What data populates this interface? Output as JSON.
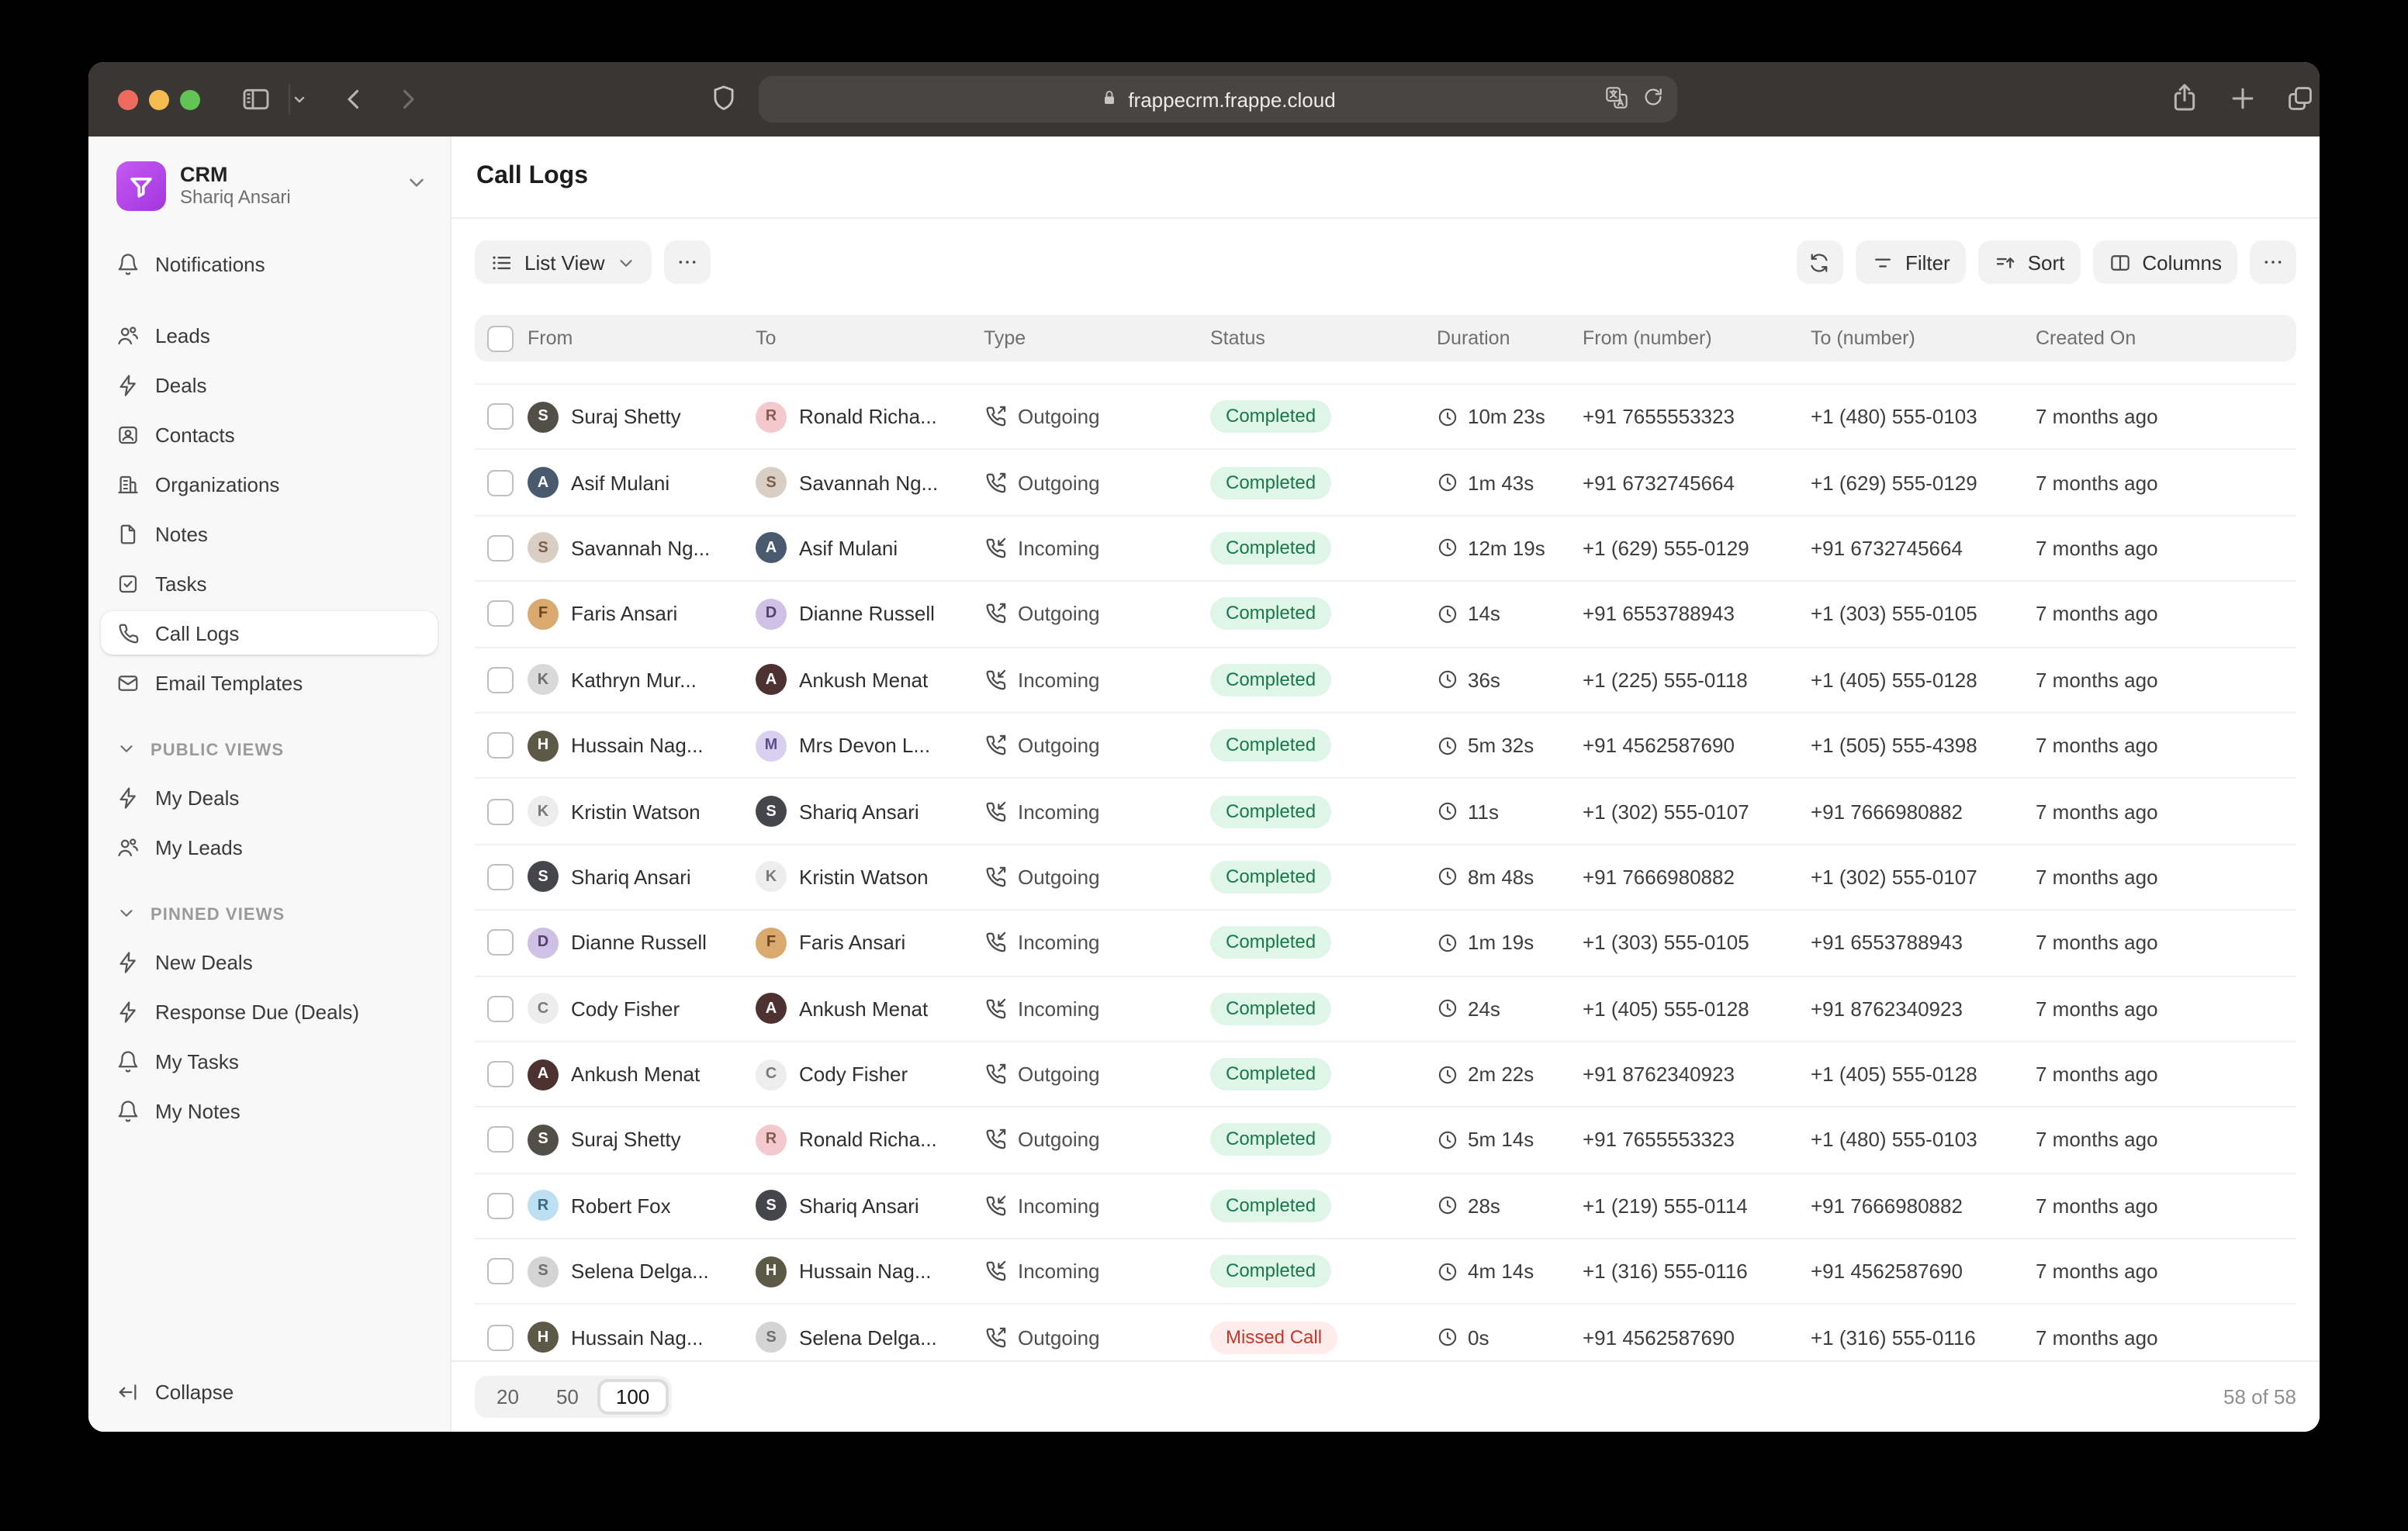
{
  "browser": {
    "url": "frappecrm.frappe.cloud"
  },
  "sidebar": {
    "app_name": "CRM",
    "user_name": "Shariq Ansari",
    "notifications": {
      "label": "Notifications",
      "icon": "bell"
    },
    "items": [
      {
        "label": "Leads",
        "icon": "users",
        "active": false
      },
      {
        "label": "Deals",
        "icon": "zap",
        "active": false
      },
      {
        "label": "Contacts",
        "icon": "contact",
        "active": false
      },
      {
        "label": "Organizations",
        "icon": "building",
        "active": false
      },
      {
        "label": "Notes",
        "icon": "file",
        "active": false
      },
      {
        "label": "Tasks",
        "icon": "tasks",
        "active": false
      },
      {
        "label": "Call Logs",
        "icon": "phone",
        "active": true
      },
      {
        "label": "Email Templates",
        "icon": "mail",
        "active": false
      }
    ],
    "sections": [
      {
        "title": "PUBLIC VIEWS",
        "items": [
          {
            "label": "My Deals",
            "icon": "zap"
          },
          {
            "label": "My Leads",
            "icon": "users"
          }
        ]
      },
      {
        "title": "PINNED VIEWS",
        "items": [
          {
            "label": "New Deals",
            "icon": "zap"
          },
          {
            "label": "Response Due (Deals)",
            "icon": "zap"
          },
          {
            "label": "My Tasks",
            "icon": "bell"
          },
          {
            "label": "My Notes",
            "icon": "bell"
          }
        ]
      }
    ],
    "collapse_label": "Collapse"
  },
  "header": {
    "title": "Call Logs"
  },
  "toolbar": {
    "view_label": "List View",
    "filter_label": "Filter",
    "sort_label": "Sort",
    "columns_label": "Columns"
  },
  "table": {
    "columns": [
      "From",
      "To",
      "Type",
      "Status",
      "Duration",
      "From (number)",
      "To (number)",
      "Created On"
    ],
    "rows": [
      {
        "from": {
          "name": "Suraj Shetty",
          "initial": "S",
          "bg": "#514f47",
          "fg": "#ffffff"
        },
        "to": {
          "name": "Ronald Richa...",
          "initial": "R",
          "bg": "#f3c9ce",
          "fg": "#8a5a55"
        },
        "type": "Outgoing",
        "status": "Completed",
        "duration": "10m 23s",
        "from_number": "+91 7655553323",
        "to_number": "+1 (480) 555-0103",
        "created": "7 months ago"
      },
      {
        "from": {
          "name": "Asif Mulani",
          "initial": "A",
          "bg": "#4a5a6e",
          "fg": "#ffffff"
        },
        "to": {
          "name": "Savannah Ng...",
          "initial": "S",
          "bg": "#d8cec3",
          "fg": "#7a5f4c"
        },
        "type": "Outgoing",
        "status": "Completed",
        "duration": "1m 43s",
        "from_number": "+91 6732745664",
        "to_number": "+1 (629) 555-0129",
        "created": "7 months ago"
      },
      {
        "from": {
          "name": "Savannah Ng...",
          "initial": "S",
          "bg": "#d8cec3",
          "fg": "#7a5f4c"
        },
        "to": {
          "name": "Asif Mulani",
          "initial": "A",
          "bg": "#4a5a6e",
          "fg": "#ffffff"
        },
        "type": "Incoming",
        "status": "Completed",
        "duration": "12m 19s",
        "from_number": "+1 (629) 555-0129",
        "to_number": "+91 6732745664",
        "created": "7 months ago"
      },
      {
        "from": {
          "name": "Faris Ansari",
          "initial": "F",
          "bg": "#d9a96d",
          "fg": "#6b4420"
        },
        "to": {
          "name": "Dianne Russell",
          "initial": "D",
          "bg": "#cfc1e6",
          "fg": "#563f6e"
        },
        "type": "Outgoing",
        "status": "Completed",
        "duration": "14s",
        "from_number": "+91 6553788943",
        "to_number": "+1 (303) 555-0105",
        "created": "7 months ago"
      },
      {
        "from": {
          "name": "Kathryn Mur...",
          "initial": "K",
          "bg": "#d9d9d9",
          "fg": "#6e6e6e"
        },
        "to": {
          "name": "Ankush Menat",
          "initial": "A",
          "bg": "#4e3131",
          "fg": "#ffffff"
        },
        "type": "Incoming",
        "status": "Completed",
        "duration": "36s",
        "from_number": "+1 (225) 555-0118",
        "to_number": "+1 (405) 555-0128",
        "created": "7 months ago"
      },
      {
        "from": {
          "name": "Hussain Nag...",
          "initial": "H",
          "bg": "#5c5946",
          "fg": "#ffffff"
        },
        "to": {
          "name": "Mrs Devon L...",
          "initial": "M",
          "bg": "#d9d0f0",
          "fg": "#5d4f8a"
        },
        "type": "Outgoing",
        "status": "Completed",
        "duration": "5m 32s",
        "from_number": "+91 4562587690",
        "to_number": "+1 (505) 555-4398",
        "created": "7 months ago"
      },
      {
        "from": {
          "name": "Kristin Watson",
          "initial": "K",
          "bg": "#ededed",
          "fg": "#7a7a7a"
        },
        "to": {
          "name": "Shariq Ansari",
          "initial": "S",
          "bg": "#45454c",
          "fg": "#ffffff"
        },
        "type": "Incoming",
        "status": "Completed",
        "duration": "11s",
        "from_number": "+1 (302) 555-0107",
        "to_number": "+91 7666980882",
        "created": "7 months ago"
      },
      {
        "from": {
          "name": "Shariq Ansari",
          "initial": "S",
          "bg": "#45454c",
          "fg": "#ffffff"
        },
        "to": {
          "name": "Kristin Watson",
          "initial": "K",
          "bg": "#ededed",
          "fg": "#7a7a7a"
        },
        "type": "Outgoing",
        "status": "Completed",
        "duration": "8m 48s",
        "from_number": "+91 7666980882",
        "to_number": "+1 (302) 555-0107",
        "created": "7 months ago"
      },
      {
        "from": {
          "name": "Dianne Russell",
          "initial": "D",
          "bg": "#cfc1e6",
          "fg": "#563f6e"
        },
        "to": {
          "name": "Faris Ansari",
          "initial": "F",
          "bg": "#d9a96d",
          "fg": "#6b4420"
        },
        "type": "Incoming",
        "status": "Completed",
        "duration": "1m 19s",
        "from_number": "+1 (303) 555-0105",
        "to_number": "+91 6553788943",
        "created": "7 months ago"
      },
      {
        "from": {
          "name": "Cody Fisher",
          "initial": "C",
          "bg": "#ededed",
          "fg": "#7a7a7a"
        },
        "to": {
          "name": "Ankush Menat",
          "initial": "A",
          "bg": "#4e3131",
          "fg": "#ffffff"
        },
        "type": "Incoming",
        "status": "Completed",
        "duration": "24s",
        "from_number": "+1 (405) 555-0128",
        "to_number": "+91 8762340923",
        "created": "7 months ago"
      },
      {
        "from": {
          "name": "Ankush Menat",
          "initial": "A",
          "bg": "#4e3131",
          "fg": "#ffffff"
        },
        "to": {
          "name": "Cody Fisher",
          "initial": "C",
          "bg": "#ededed",
          "fg": "#7a7a7a"
        },
        "type": "Outgoing",
        "status": "Completed",
        "duration": "2m 22s",
        "from_number": "+91 8762340923",
        "to_number": "+1 (405) 555-0128",
        "created": "7 months ago"
      },
      {
        "from": {
          "name": "Suraj Shetty",
          "initial": "S",
          "bg": "#514f47",
          "fg": "#ffffff"
        },
        "to": {
          "name": "Ronald Richa...",
          "initial": "R",
          "bg": "#f3c9ce",
          "fg": "#8a5a55"
        },
        "type": "Outgoing",
        "status": "Completed",
        "duration": "5m 14s",
        "from_number": "+91 7655553323",
        "to_number": "+1 (480) 555-0103",
        "created": "7 months ago"
      },
      {
        "from": {
          "name": "Robert Fox",
          "initial": "R",
          "bg": "#bcdff2",
          "fg": "#3c6781"
        },
        "to": {
          "name": "Shariq Ansari",
          "initial": "S",
          "bg": "#45454c",
          "fg": "#ffffff"
        },
        "type": "Incoming",
        "status": "Completed",
        "duration": "28s",
        "from_number": "+1 (219) 555-0114",
        "to_number": "+91 7666980882",
        "created": "7 months ago"
      },
      {
        "from": {
          "name": "Selena Delga...",
          "initial": "S",
          "bg": "#d4d4d4",
          "fg": "#6e6e6e"
        },
        "to": {
          "name": "Hussain Nag...",
          "initial": "H",
          "bg": "#5c5946",
          "fg": "#ffffff"
        },
        "type": "Incoming",
        "status": "Completed",
        "duration": "4m 14s",
        "from_number": "+1 (316) 555-0116",
        "to_number": "+91 4562587690",
        "created": "7 months ago"
      },
      {
        "from": {
          "name": "Hussain Nag...",
          "initial": "H",
          "bg": "#5c5946",
          "fg": "#ffffff"
        },
        "to": {
          "name": "Selena Delga...",
          "initial": "S",
          "bg": "#d4d4d4",
          "fg": "#6e6e6e"
        },
        "type": "Outgoing",
        "status": "Missed Call",
        "duration": "0s",
        "from_number": "+91 4562587690",
        "to_number": "+1 (316) 555-0116",
        "created": "7 months ago"
      }
    ]
  },
  "pagination": {
    "options": [
      "20",
      "50",
      "100"
    ],
    "selected": "100",
    "total": "58 of 58"
  },
  "colors": {
    "brand_purple": "#b44fe8",
    "completed_fg": "#17794a",
    "completed_bg": "#def5e7",
    "missed_fg": "#c0382f",
    "missed_bg": "#fdecea",
    "chrome_bg": "#3a3633",
    "sidebar_bg": "#f8f8f8"
  }
}
